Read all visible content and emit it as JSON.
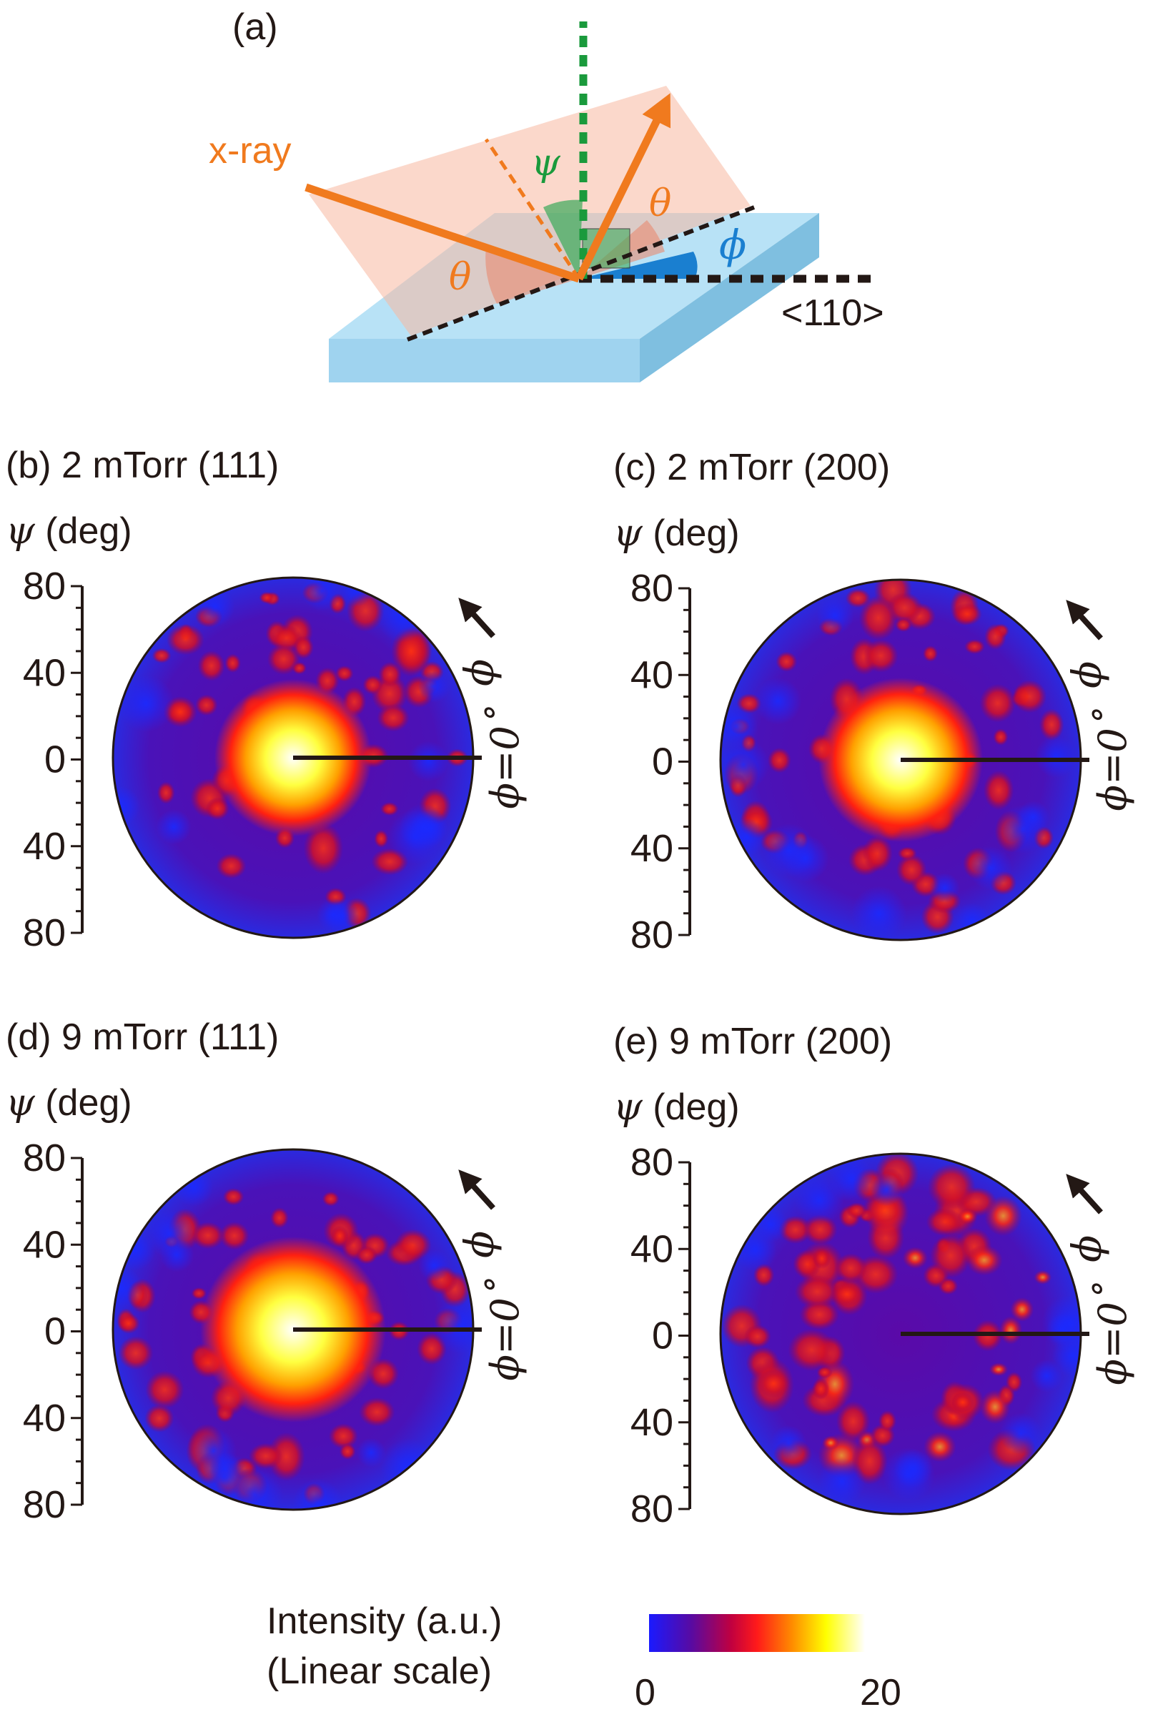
{
  "schematic": {
    "label": "(a)",
    "xray": "x-ray",
    "psi": "ψ",
    "theta": "θ",
    "phi": "ϕ",
    "direction": "<110>",
    "colors": {
      "beam": "#f07a1e",
      "normal": "#1a9a3c",
      "phi_arc": "#1a7fd0",
      "substrate": "#a8d8f0",
      "plane": "#f9c8b0"
    }
  },
  "axis_unit": "(deg)",
  "axis_symbol": "ψ",
  "phi_arrow_label": "ϕ",
  "phi_zero_label": "ϕ=0˚",
  "panels": [
    {
      "label": "(b) 2 mTorr (111)",
      "tick_labels": [
        "80",
        "40",
        "0",
        "40",
        "80"
      ]
    },
    {
      "label": "(c) 2 mTorr (200)",
      "tick_labels": [
        "80",
        "40",
        "0",
        "40",
        "80"
      ]
    },
    {
      "label": "(d) 9 mTorr (111)",
      "tick_labels": [
        "80",
        "40",
        "0",
        "40",
        "80"
      ]
    },
    {
      "label": "(e) 9 mTorr (200)",
      "tick_labels": [
        "80",
        "40",
        "0",
        "40",
        "80"
      ]
    }
  ],
  "colorbar": {
    "title_line1": "Intensity (a.u.)",
    "title_line2": "(Linear scale)",
    "min_label": "0",
    "max_label": "20",
    "colormap": [
      "#1a1aff",
      "#5a0aa0",
      "#c00040",
      "#ff1a1a",
      "#ff8a00",
      "#ffff00",
      "#ffffff"
    ]
  }
}
